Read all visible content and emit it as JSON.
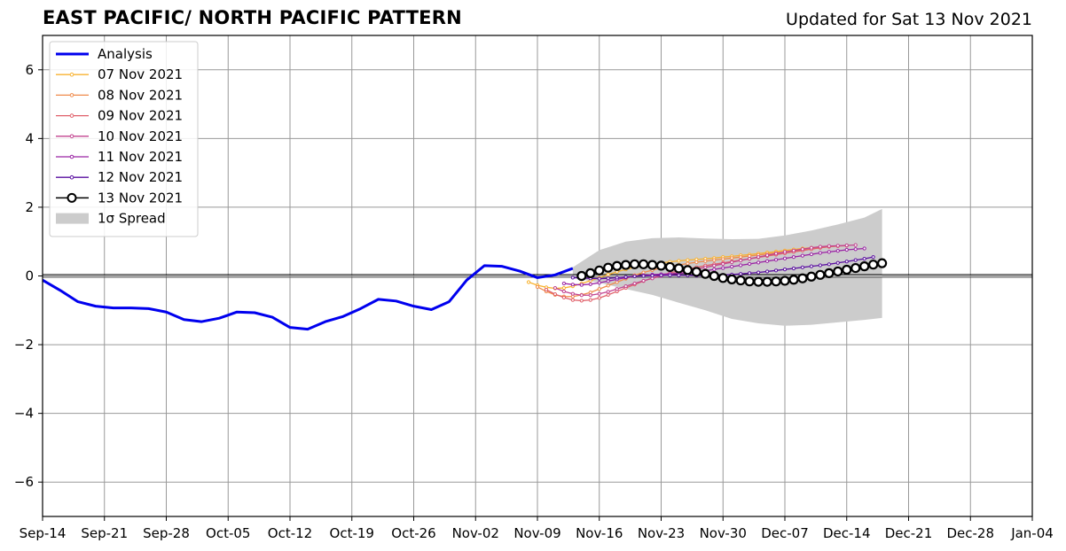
{
  "header": {
    "title": "EAST PACIFIC/ NORTH PACIFIC PATTERN",
    "subtitle": "Updated for Sat 13 Nov 2021"
  },
  "chart_data": {
    "type": "line",
    "title": "EAST PACIFIC/ NORTH PACIFIC PATTERN",
    "subtitle": "Updated for Sat 13 Nov 2021",
    "xlabel": "",
    "ylabel": "",
    "x_type": "date",
    "xlim": [
      "2021-09-14",
      "2022-01-04"
    ],
    "ylim": [
      -7,
      7
    ],
    "x_tick_labels": [
      "Sep-14",
      "Sep-21",
      "Sep-28",
      "Oct-05",
      "Oct-12",
      "Oct-19",
      "Oct-26",
      "Nov-02",
      "Nov-09",
      "Nov-16",
      "Nov-23",
      "Nov-30",
      "Dec-07",
      "Dec-14",
      "Dec-21",
      "Dec-28",
      "Jan-04"
    ],
    "x_tick_dates": [
      "2021-09-14",
      "2021-09-21",
      "2021-09-28",
      "2021-10-05",
      "2021-10-12",
      "2021-10-19",
      "2021-10-26",
      "2021-11-02",
      "2021-11-09",
      "2021-11-16",
      "2021-11-23",
      "2021-11-30",
      "2021-12-07",
      "2021-12-14",
      "2021-12-21",
      "2021-12-28",
      "2022-01-04"
    ],
    "y_ticks": [
      -6,
      -4,
      -2,
      0,
      2,
      4,
      6
    ],
    "y_tick_labels": [
      "−6",
      "−4",
      "−2",
      "0",
      "2",
      "4",
      "6"
    ],
    "grid": true,
    "legend_position": "top-left",
    "colors": {
      "analysis": "#0000ee",
      "spread": "#cccccc",
      "zero_line": "#000000",
      "grid": "#999999"
    },
    "analysis": {
      "name": "Analysis",
      "x": [
        "2021-09-14",
        "2021-09-16",
        "2021-09-18",
        "2021-09-20",
        "2021-09-22",
        "2021-09-24",
        "2021-09-26",
        "2021-09-28",
        "2021-09-30",
        "2021-10-02",
        "2021-10-04",
        "2021-10-06",
        "2021-10-08",
        "2021-10-10",
        "2021-10-12",
        "2021-10-14",
        "2021-10-16",
        "2021-10-18",
        "2021-10-20",
        "2021-10-22",
        "2021-10-24",
        "2021-10-26",
        "2021-10-28",
        "2021-10-30",
        "2021-11-01",
        "2021-11-03",
        "2021-11-05",
        "2021-11-07",
        "2021-11-09",
        "2021-11-11",
        "2021-11-13"
      ],
      "y": [
        -0.12,
        -0.42,
        -0.75,
        -0.88,
        -0.93,
        -0.93,
        -0.95,
        -1.05,
        -1.27,
        -1.33,
        -1.23,
        -1.05,
        -1.07,
        -1.2,
        -1.5,
        -1.55,
        -1.33,
        -1.18,
        -0.95,
        -0.68,
        -0.73,
        -0.88,
        -0.98,
        -0.75,
        -0.12,
        0.3,
        0.28,
        0.14,
        -0.05,
        0.03,
        0.22
      ]
    },
    "forecasts": [
      {
        "name": "07 Nov 2021",
        "color": "#f8b230",
        "start": "2021-11-08",
        "y": [
          -0.18,
          -0.27,
          -0.33,
          -0.36,
          -0.35,
          -0.3,
          -0.22,
          -0.14,
          -0.05,
          0.04,
          0.12,
          0.19,
          0.25,
          0.3,
          0.35,
          0.38,
          0.41,
          0.44,
          0.46,
          0.48,
          0.5,
          0.52,
          0.55,
          0.57,
          0.6,
          0.62,
          0.65,
          0.68,
          0.71,
          0.74,
          0.77,
          0.8,
          0.82,
          0.84,
          0.86
        ]
      },
      {
        "name": "08 Nov 2021",
        "color": "#f08a4b",
        "start": "2021-11-09",
        "y": [
          -0.32,
          -0.45,
          -0.55,
          -0.6,
          -0.6,
          -0.55,
          -0.48,
          -0.38,
          -0.28,
          -0.18,
          -0.08,
          0.02,
          0.1,
          0.17,
          0.23,
          0.28,
          0.32,
          0.36,
          0.4,
          0.43,
          0.46,
          0.49,
          0.52,
          0.55,
          0.58,
          0.61,
          0.64,
          0.67,
          0.7,
          0.73,
          0.76,
          0.79,
          0.82,
          0.85,
          0.87
        ]
      },
      {
        "name": "09 Nov 2021",
        "color": "#e0606a",
        "start": "2021-11-10",
        "y": [
          -0.4,
          -0.53,
          -0.63,
          -0.7,
          -0.72,
          -0.7,
          -0.64,
          -0.55,
          -0.45,
          -0.35,
          -0.25,
          -0.15,
          -0.06,
          0.02,
          0.09,
          0.15,
          0.2,
          0.25,
          0.3,
          0.34,
          0.38,
          0.42,
          0.46,
          0.5,
          0.54,
          0.58,
          0.62,
          0.66,
          0.7,
          0.74,
          0.78,
          0.82,
          0.85,
          0.87,
          0.88
        ]
      },
      {
        "name": "10 Nov 2021",
        "color": "#c2438f",
        "start": "2021-11-11",
        "y": [
          -0.35,
          -0.45,
          -0.52,
          -0.56,
          -0.56,
          -0.52,
          -0.46,
          -0.38,
          -0.3,
          -0.22,
          -0.14,
          -0.07,
          0.0,
          0.05,
          0.1,
          0.15,
          0.2,
          0.25,
          0.3,
          0.35,
          0.4,
          0.45,
          0.5,
          0.55,
          0.6,
          0.65,
          0.7,
          0.74,
          0.78,
          0.82,
          0.85,
          0.87,
          0.88,
          0.89,
          0.9
        ]
      },
      {
        "name": "11 Nov 2021",
        "color": "#9a24a4",
        "start": "2021-11-12",
        "y": [
          -0.22,
          -0.25,
          -0.26,
          -0.24,
          -0.2,
          -0.15,
          -0.1,
          -0.05,
          -0.01,
          0.02,
          0.04,
          0.05,
          0.06,
          0.07,
          0.09,
          0.12,
          0.15,
          0.19,
          0.23,
          0.27,
          0.31,
          0.35,
          0.39,
          0.43,
          0.47,
          0.51,
          0.55,
          0.59,
          0.63,
          0.67,
          0.7,
          0.73,
          0.76,
          0.78,
          0.8
        ]
      },
      {
        "name": "12 Nov 2021",
        "color": "#5a0fa0",
        "start": "2021-11-13",
        "y": [
          -0.05,
          -0.06,
          -0.07,
          -0.08,
          -0.07,
          -0.05,
          -0.03,
          -0.01,
          0.0,
          0.01,
          0.02,
          0.02,
          0.02,
          0.02,
          0.01,
          0.01,
          0.02,
          0.03,
          0.04,
          0.06,
          0.08,
          0.1,
          0.13,
          0.16,
          0.19,
          0.22,
          0.25,
          0.28,
          0.31,
          0.34,
          0.38,
          0.42,
          0.46,
          0.5,
          0.55
        ]
      },
      {
        "name": "13 Nov 2021",
        "color": "#000000",
        "marker": "open-circle",
        "start": "2021-11-14",
        "y": [
          0.0,
          0.08,
          0.16,
          0.24,
          0.29,
          0.32,
          0.34,
          0.34,
          0.32,
          0.3,
          0.26,
          0.22,
          0.17,
          0.12,
          0.06,
          0.0,
          -0.06,
          -0.1,
          -0.13,
          -0.16,
          -0.17,
          -0.17,
          -0.16,
          -0.14,
          -0.11,
          -0.07,
          -0.02,
          0.03,
          0.08,
          0.13,
          0.18,
          0.23,
          0.28,
          0.33,
          0.37
        ]
      }
    ],
    "spread": {
      "name": "1σ Spread",
      "x": [
        "2021-11-13",
        "2021-11-16",
        "2021-11-19",
        "2021-11-22",
        "2021-11-25",
        "2021-11-28",
        "2021-12-01",
        "2021-12-04",
        "2021-12-07",
        "2021-12-10",
        "2021-12-13",
        "2021-12-16",
        "2021-12-18"
      ],
      "upper": [
        0.25,
        0.75,
        1.0,
        1.1,
        1.12,
        1.09,
        1.07,
        1.08,
        1.18,
        1.32,
        1.5,
        1.7,
        1.95
      ],
      "lower": [
        -0.05,
        -0.2,
        -0.38,
        -0.55,
        -0.78,
        -1.0,
        -1.25,
        -1.38,
        -1.45,
        -1.42,
        -1.35,
        -1.28,
        -1.22
      ]
    }
  },
  "legend": {
    "items": [
      {
        "label": "Analysis",
        "kind": "line",
        "color": "#0000ee"
      },
      {
        "label": "07 Nov 2021",
        "kind": "marker-line",
        "color": "#f8b230"
      },
      {
        "label": "08 Nov 2021",
        "kind": "marker-line",
        "color": "#f08a4b"
      },
      {
        "label": "09 Nov 2021",
        "kind": "marker-line",
        "color": "#e0606a"
      },
      {
        "label": "10 Nov 2021",
        "kind": "marker-line",
        "color": "#c2438f"
      },
      {
        "label": "11 Nov 2021",
        "kind": "marker-line",
        "color": "#9a24a4"
      },
      {
        "label": "12 Nov 2021",
        "kind": "marker-line",
        "color": "#5a0fa0"
      },
      {
        "label": "13 Nov 2021",
        "kind": "open-circle",
        "color": "#000000"
      },
      {
        "label": "1σ Spread",
        "kind": "patch",
        "color": "#cccccc"
      }
    ]
  }
}
